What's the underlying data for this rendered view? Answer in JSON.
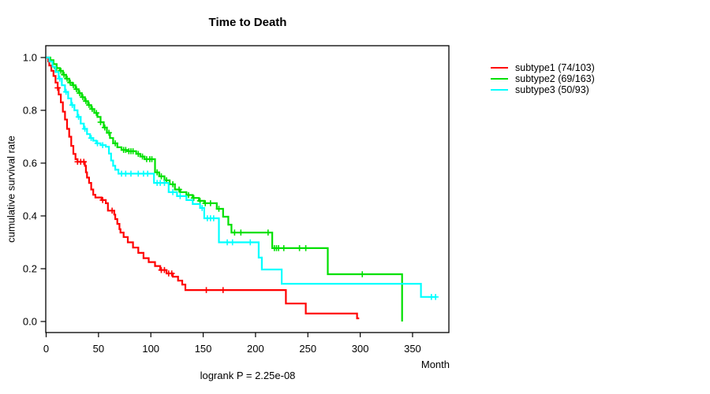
{
  "page": {
    "background": "#ffffff"
  },
  "chart_data": {
    "type": "line",
    "variant": "kaplan_meier_step",
    "title": "Time to Death",
    "xlabel": "Month",
    "ylabel": "cumulative survival rate",
    "annotation": "logrank P = 2.25e-08",
    "xlim": [
      0,
      385
    ],
    "ylim": [
      0.0,
      1.0
    ],
    "grid": false,
    "legend_position": "top-right-outside",
    "x_ticks": [
      0,
      50,
      100,
      150,
      200,
      250,
      300,
      350
    ],
    "x_tick_labels": [
      "0",
      "50",
      "100",
      "150",
      "200",
      "250",
      "300",
      "350"
    ],
    "y_ticks": [
      0.0,
      0.2,
      0.4,
      0.6,
      0.8,
      1.0
    ],
    "y_tick_labels": [
      "0.0",
      "0.2",
      "0.4",
      "0.6",
      "0.8",
      "1.0"
    ],
    "series": [
      {
        "name": "subtype1 (74/103)",
        "color": "#ff0000",
        "end": 299,
        "steps": [
          [
            0,
            1.0
          ],
          [
            2,
            0.985
          ],
          [
            3,
            0.97
          ],
          [
            5,
            0.95
          ],
          [
            7,
            0.93
          ],
          [
            9,
            0.905
          ],
          [
            11,
            0.885
          ],
          [
            12,
            0.86
          ],
          [
            14,
            0.83
          ],
          [
            16,
            0.795
          ],
          [
            18,
            0.765
          ],
          [
            20,
            0.73
          ],
          [
            22,
            0.7
          ],
          [
            24,
            0.665
          ],
          [
            26,
            0.635
          ],
          [
            28,
            0.615
          ],
          [
            30,
            0.605
          ],
          [
            37,
            0.59
          ],
          [
            38,
            0.565
          ],
          [
            39,
            0.545
          ],
          [
            41,
            0.525
          ],
          [
            43,
            0.5
          ],
          [
            45,
            0.48
          ],
          [
            47,
            0.47
          ],
          [
            53,
            0.46
          ],
          [
            57,
            0.448
          ],
          [
            59,
            0.42
          ],
          [
            65,
            0.405
          ],
          [
            66,
            0.388
          ],
          [
            68,
            0.37
          ],
          [
            70,
            0.35
          ],
          [
            71,
            0.337
          ],
          [
            74,
            0.32
          ],
          [
            78,
            0.3
          ],
          [
            83,
            0.28
          ],
          [
            88,
            0.26
          ],
          [
            93,
            0.24
          ],
          [
            98,
            0.225
          ],
          [
            104,
            0.21
          ],
          [
            109,
            0.195
          ],
          [
            115,
            0.182
          ],
          [
            121,
            0.17
          ],
          [
            126,
            0.155
          ],
          [
            130,
            0.14
          ],
          [
            133,
            0.119
          ],
          [
            229,
            0.068
          ],
          [
            248,
            0.03
          ],
          [
            297,
            0.012
          ]
        ],
        "censor_times": [
          11,
          30,
          33,
          36,
          54,
          63,
          110,
          113,
          117,
          120,
          153,
          169
        ]
      },
      {
        "name": "subtype2 (69/163)",
        "color": "#00e000",
        "end": 340,
        "steps": [
          [
            0,
            1.0
          ],
          [
            4,
            0.99
          ],
          [
            7,
            0.975
          ],
          [
            10,
            0.96
          ],
          [
            13,
            0.95
          ],
          [
            16,
            0.935
          ],
          [
            19,
            0.92
          ],
          [
            22,
            0.905
          ],
          [
            25,
            0.895
          ],
          [
            28,
            0.88
          ],
          [
            31,
            0.865
          ],
          [
            34,
            0.85
          ],
          [
            37,
            0.835
          ],
          [
            40,
            0.82
          ],
          [
            43,
            0.805
          ],
          [
            46,
            0.79
          ],
          [
            49,
            0.775
          ],
          [
            52,
            0.755
          ],
          [
            55,
            0.735
          ],
          [
            58,
            0.715
          ],
          [
            61,
            0.695
          ],
          [
            64,
            0.675
          ],
          [
            68,
            0.66
          ],
          [
            72,
            0.65
          ],
          [
            78,
            0.645
          ],
          [
            86,
            0.635
          ],
          [
            90,
            0.625
          ],
          [
            94,
            0.615
          ],
          [
            104,
            0.565
          ],
          [
            108,
            0.55
          ],
          [
            113,
            0.535
          ],
          [
            118,
            0.52
          ],
          [
            123,
            0.5
          ],
          [
            128,
            0.49
          ],
          [
            134,
            0.479
          ],
          [
            140,
            0.468
          ],
          [
            146,
            0.457
          ],
          [
            151,
            0.448
          ],
          [
            163,
            0.427
          ],
          [
            169,
            0.397
          ],
          [
            174,
            0.367
          ],
          [
            177,
            0.337
          ],
          [
            216,
            0.278
          ],
          [
            269,
            0.179
          ],
          [
            340,
            0.0
          ]
        ],
        "censor_times": [
          10,
          14,
          17,
          20,
          23,
          26,
          29,
          32,
          35,
          38,
          41,
          44,
          48,
          52,
          56,
          60,
          66,
          74,
          76,
          79,
          81,
          83,
          88,
          92,
          96,
          99,
          101,
          106,
          110,
          115,
          121,
          127,
          136,
          141,
          147,
          152,
          157,
          165,
          180,
          186,
          212,
          218,
          220,
          222,
          227,
          242,
          248,
          302
        ]
      },
      {
        "name": "subtype3 (50/93)",
        "color": "#00ffff",
        "end": 373,
        "steps": [
          [
            0,
            1.0
          ],
          [
            3,
            0.985
          ],
          [
            6,
            0.965
          ],
          [
            9,
            0.945
          ],
          [
            12,
            0.92
          ],
          [
            15,
            0.895
          ],
          [
            18,
            0.87
          ],
          [
            21,
            0.845
          ],
          [
            24,
            0.82
          ],
          [
            27,
            0.8
          ],
          [
            30,
            0.775
          ],
          [
            33,
            0.75
          ],
          [
            36,
            0.73
          ],
          [
            39,
            0.71
          ],
          [
            42,
            0.695
          ],
          [
            45,
            0.685
          ],
          [
            48,
            0.675
          ],
          [
            52,
            0.668
          ],
          [
            57,
            0.662
          ],
          [
            60,
            0.636
          ],
          [
            62,
            0.61
          ],
          [
            64,
            0.59
          ],
          [
            66,
            0.575
          ],
          [
            69,
            0.56
          ],
          [
            103,
            0.525
          ],
          [
            117,
            0.49
          ],
          [
            125,
            0.475
          ],
          [
            134,
            0.46
          ],
          [
            140,
            0.445
          ],
          [
            147,
            0.43
          ],
          [
            151,
            0.391
          ],
          [
            165,
            0.3
          ],
          [
            203,
            0.242
          ],
          [
            206,
            0.197
          ],
          [
            225,
            0.143
          ],
          [
            358,
            0.093
          ]
        ],
        "censor_times": [
          13,
          19,
          25,
          31,
          37,
          43,
          49,
          54,
          72,
          76,
          81,
          88,
          93,
          97,
          106,
          109,
          113,
          121,
          128,
          149,
          154,
          157,
          160,
          173,
          178,
          195,
          368,
          372
        ]
      }
    ]
  }
}
